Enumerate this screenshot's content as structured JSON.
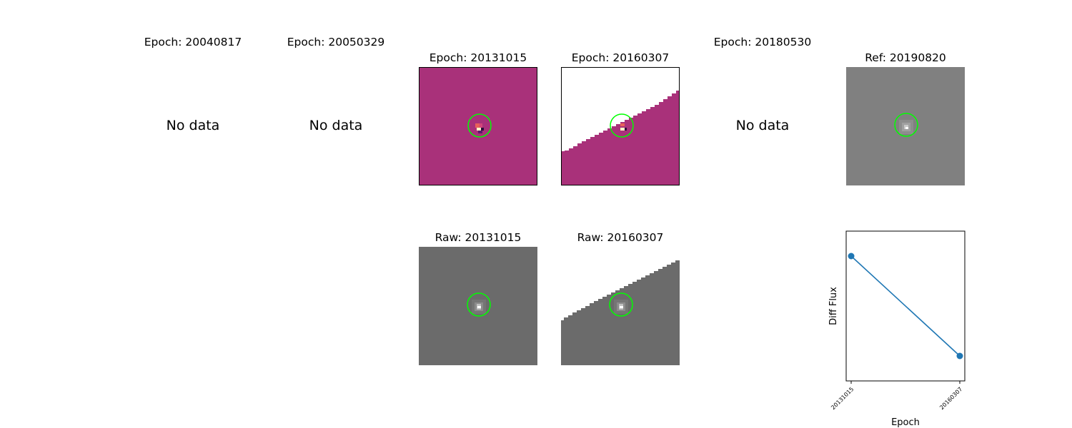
{
  "panels": {
    "e1": {
      "title": "Epoch: 20040817",
      "message": "No data"
    },
    "e2": {
      "title": "Epoch: 20050329",
      "message": "No data"
    },
    "e3": {
      "title": "Epoch: 20131015"
    },
    "e4": {
      "title": "Epoch: 20160307"
    },
    "e5": {
      "title": "Epoch: 20180530",
      "message": "No data"
    },
    "ref": {
      "title": "Ref: 20190820"
    },
    "r3": {
      "title": "Raw: 20131015"
    },
    "r4": {
      "title": "Raw: 20160307"
    }
  },
  "colors": {
    "diff_background": "#a9317a",
    "raw_background": "#6b6b6b",
    "ref_background": "#808080",
    "aperture": "#00ff00",
    "series": "#1f77b4"
  },
  "chart_data": {
    "type": "line",
    "title": "",
    "xlabel": "Epoch",
    "ylabel": "Diff Flux",
    "categories": [
      "20131015",
      "20160307"
    ],
    "series": [
      {
        "values": [
          1.0,
          0.0
        ]
      }
    ],
    "grid": false,
    "y_ticks_shown": false
  }
}
